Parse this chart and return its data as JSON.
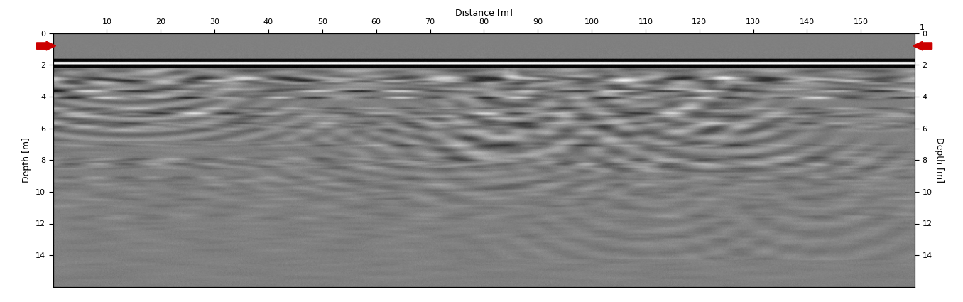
{
  "title_top": "Distance [m]",
  "x_ticks": [
    10,
    20,
    30,
    40,
    50,
    60,
    70,
    80,
    90,
    100,
    110,
    120,
    130,
    140,
    150
  ],
  "x_tick_right_label": "1",
  "x_min": 0,
  "x_max": 160,
  "y_min": 0,
  "y_max": 16,
  "y_ticks_left": [
    0,
    2,
    4,
    6,
    8,
    10,
    12,
    14
  ],
  "y_ticks_right": [
    0,
    2,
    4,
    6,
    8,
    10,
    12,
    14
  ],
  "ylabel_left": "Depth [m]",
  "ylabel_right": "Depth [m]",
  "arrow_color": "#cc0000",
  "figure_width": 13.56,
  "figure_height": 4.25,
  "dpi": 100
}
